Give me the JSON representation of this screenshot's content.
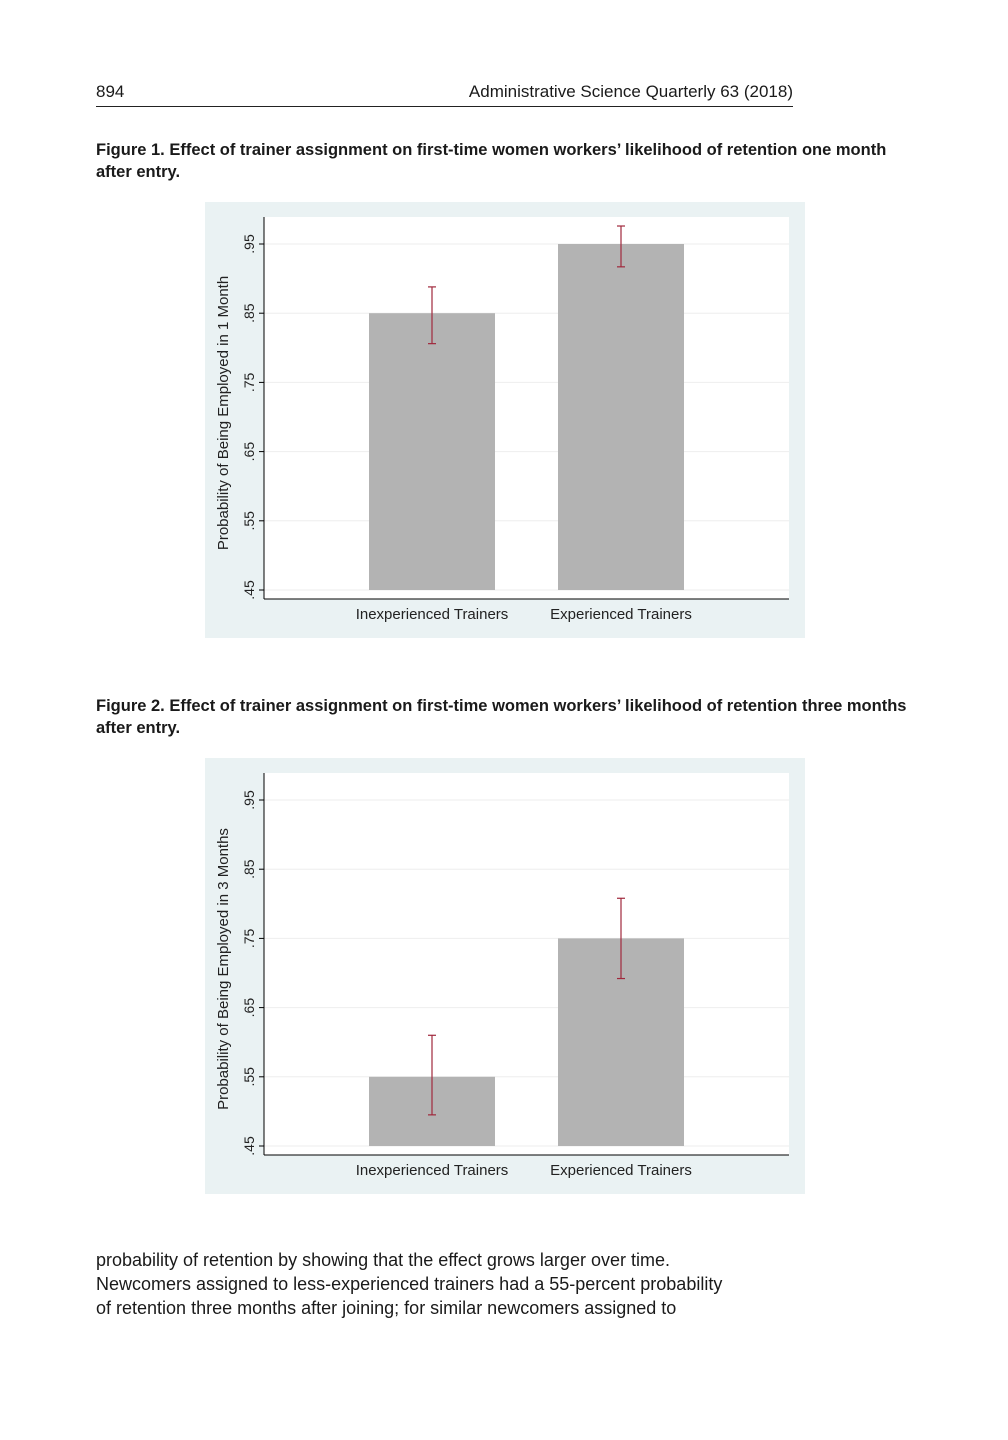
{
  "header": {
    "page_number": "894",
    "journal": "Administrative Science Quarterly 63 (2018)"
  },
  "figures": [
    {
      "caption": "Figure 1.  Effect of trainer assignment on first-time women workers’ likelihood of retention one month after entry."
    },
    {
      "caption": "Figure 2.  Effect of trainer assignment on first-time women workers’ likelihood of retention three months after entry."
    }
  ],
  "chart_data": [
    {
      "type": "bar",
      "categories": [
        "Inexperienced Trainers",
        "Experienced Trainers"
      ],
      "values": [
        0.85,
        0.95
      ],
      "error_low": [
        0.806,
        0.917
      ],
      "error_high": [
        0.888,
        0.976
      ],
      "xlabel": "",
      "ylabel": "Probability of Being Employed in 1 Month",
      "ylim": [
        0.45,
        0.95
      ],
      "yticks": [
        ".45",
        ".55",
        ".65",
        ".75",
        ".85",
        ".95"
      ],
      "ytick_values": [
        0.45,
        0.55,
        0.65,
        0.75,
        0.85,
        0.95
      ],
      "grid": true,
      "colors": {
        "bar": "#b3b3b3",
        "error": "#a0283c",
        "plot_bg": "#ffffff",
        "outer_bg": "#eaf2f3",
        "grid": "#eeeeee",
        "axis": "#000000"
      }
    },
    {
      "type": "bar",
      "categories": [
        "Inexperienced Trainers",
        "Experienced Trainers"
      ],
      "values": [
        0.55,
        0.75
      ],
      "error_low": [
        0.495,
        0.692
      ],
      "error_high": [
        0.61,
        0.808
      ],
      "xlabel": "",
      "ylabel": "Probability of Being Employed in 3 Months",
      "ylim": [
        0.45,
        0.95
      ],
      "yticks": [
        ".45",
        ".55",
        ".65",
        ".75",
        ".85",
        ".95"
      ],
      "ytick_values": [
        0.45,
        0.55,
        0.65,
        0.75,
        0.85,
        0.95
      ],
      "grid": true,
      "colors": {
        "bar": "#b3b3b3",
        "error": "#a0283c",
        "plot_bg": "#ffffff",
        "outer_bg": "#eaf2f3",
        "grid": "#eeeeee",
        "axis": "#000000"
      }
    }
  ],
  "body": {
    "lines": [
      "probability of retention by showing that the effect grows larger over time.",
      "Newcomers assigned to less-experienced trainers had a 55-percent probability",
      "of retention three months after joining; for similar newcomers assigned to"
    ]
  }
}
